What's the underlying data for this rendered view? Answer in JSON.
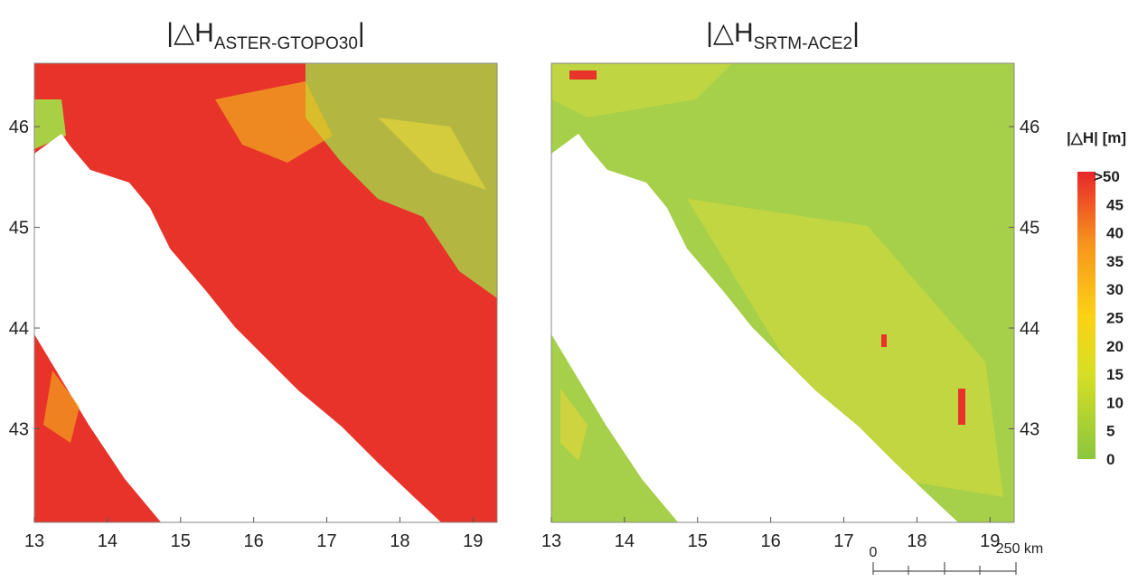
{
  "maps": [
    {
      "title": {
        "prefix": "|△H",
        "subscript": "ASTER-GTOPO30",
        "suffix": "|"
      },
      "xlim": [
        13,
        19.33
      ],
      "ylim": [
        42.07,
        46.63
      ],
      "xticks": [
        13,
        14,
        15,
        16,
        17,
        18,
        19
      ],
      "yticks": [
        43,
        44,
        45,
        46
      ]
    },
    {
      "title": {
        "prefix": "|△H",
        "subscript": "SRTM-ACE2",
        "suffix": "|"
      },
      "xlim": [
        13,
        19.33
      ],
      "ylim": [
        42.07,
        46.63
      ],
      "xticks": [
        13,
        14,
        15,
        16,
        17,
        18,
        19
      ],
      "yticks": [
        43,
        44,
        45,
        46
      ]
    }
  ],
  "legend": {
    "title": "|△H| [m]",
    "labels": [
      ">50",
      "45",
      "40",
      "35",
      "30",
      "25",
      "20",
      "15",
      "10",
      "5",
      "0"
    ]
  },
  "scale_bar": {
    "labels": [
      "0",
      "250 km"
    ]
  }
}
